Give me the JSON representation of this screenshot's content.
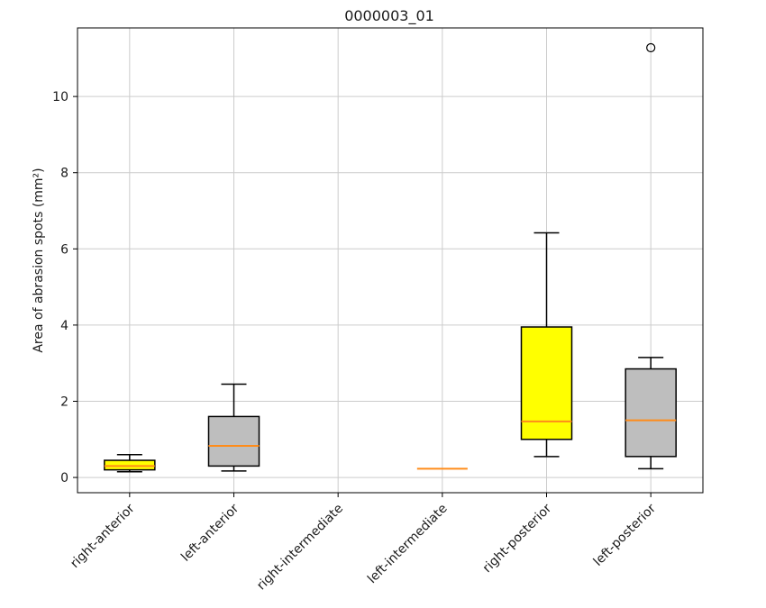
{
  "chart_data": {
    "type": "box",
    "title": "0000003_01",
    "xlabel": "",
    "ylabel": "Area of abrasion spots (mm²)",
    "ylim": [
      -0.4,
      11.8
    ],
    "yticks": [
      0,
      2,
      4,
      6,
      8,
      10
    ],
    "grid": true,
    "categories": [
      "right-anterior",
      "left-anterior",
      "right-intermediate",
      "left-intermediate",
      "right-posterior",
      "left-posterior"
    ],
    "boxes": [
      {
        "category": "right-anterior",
        "whislo": 0.15,
        "q1": 0.2,
        "med": 0.3,
        "q3": 0.45,
        "whishi": 0.6,
        "fliers": [],
        "color": "#ffff00"
      },
      {
        "category": "left-anterior",
        "whislo": 0.17,
        "q1": 0.3,
        "med": 0.83,
        "q3": 1.6,
        "whishi": 2.45,
        "fliers": [],
        "color": "#bebebe"
      },
      {
        "category": "right-intermediate",
        "empty": true
      },
      {
        "category": "left-intermediate",
        "whislo": 0.23,
        "q1": 0.23,
        "med": 0.23,
        "q3": 0.23,
        "whishi": 0.23,
        "fliers": [],
        "color": "#bebebe",
        "median_only": true
      },
      {
        "category": "right-posterior",
        "whislo": 0.55,
        "q1": 1.0,
        "med": 1.47,
        "q3": 3.95,
        "whishi": 6.42,
        "fliers": [],
        "color": "#ffff00"
      },
      {
        "category": "left-posterior",
        "whislo": 0.23,
        "q1": 0.55,
        "med": 1.5,
        "q3": 2.85,
        "whishi": 3.15,
        "fliers": [
          11.28
        ],
        "color": "#bebebe"
      }
    ],
    "median_color": "#ff8c1a",
    "line_color": "#000000",
    "grid_color": "#cccccc"
  }
}
